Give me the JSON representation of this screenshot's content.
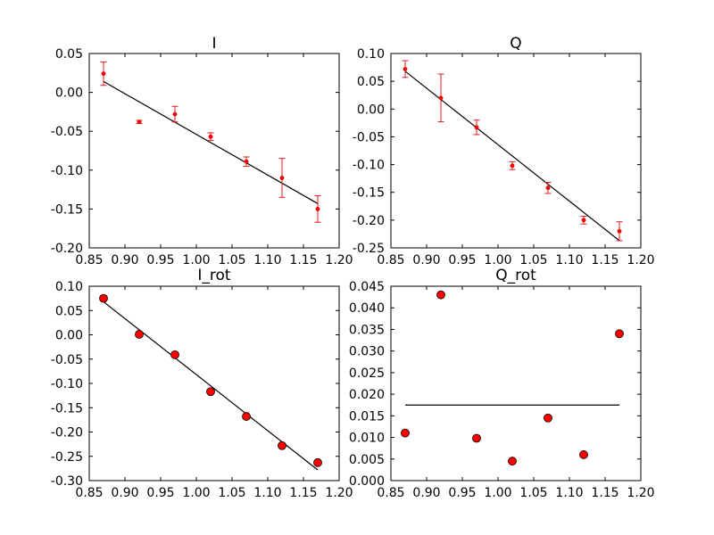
{
  "chart_data": [
    {
      "type": "scatter",
      "title": "I",
      "xlim": [
        0.85,
        1.2
      ],
      "ylim": [
        -0.2,
        0.05
      ],
      "xticks": [
        "0.85",
        "0.90",
        "0.95",
        "1.00",
        "1.05",
        "1.10",
        "1.15",
        "1.20"
      ],
      "yticks": [
        "-0.20",
        "-0.15",
        "-0.10",
        "-0.05",
        "0.00",
        "0.05"
      ],
      "marker": "dot-errorbar",
      "color": "#ff0000",
      "points": [
        {
          "x": 0.87,
          "y": 0.024,
          "err": 0.015
        },
        {
          "x": 0.92,
          "y": -0.038,
          "err": 0.002
        },
        {
          "x": 0.97,
          "y": -0.028,
          "err": 0.01
        },
        {
          "x": 1.02,
          "y": -0.057,
          "err": 0.005
        },
        {
          "x": 1.07,
          "y": -0.089,
          "err": 0.006
        },
        {
          "x": 1.12,
          "y": -0.11,
          "err": 0.025
        },
        {
          "x": 1.17,
          "y": -0.15,
          "err": 0.017
        }
      ],
      "fit": [
        [
          0.87,
          0.014
        ],
        [
          1.17,
          -0.143
        ]
      ]
    },
    {
      "type": "scatter",
      "title": "Q",
      "xlim": [
        0.85,
        1.2
      ],
      "ylim": [
        -0.25,
        0.1
      ],
      "xticks": [
        "0.85",
        "0.90",
        "0.95",
        "1.00",
        "1.05",
        "1.10",
        "1.15",
        "1.20"
      ],
      "yticks": [
        "-0.25",
        "-0.20",
        "-0.15",
        "-0.10",
        "-0.05",
        "0.00",
        "0.05",
        "0.10"
      ],
      "marker": "dot-errorbar",
      "color": "#ff0000",
      "points": [
        {
          "x": 0.87,
          "y": 0.072,
          "err": 0.015
        },
        {
          "x": 0.92,
          "y": 0.02,
          "err": 0.043
        },
        {
          "x": 0.97,
          "y": -0.033,
          "err": 0.013
        },
        {
          "x": 1.02,
          "y": -0.102,
          "err": 0.007
        },
        {
          "x": 1.07,
          "y": -0.142,
          "err": 0.01
        },
        {
          "x": 1.12,
          "y": -0.2,
          "err": 0.007
        },
        {
          "x": 1.17,
          "y": -0.22,
          "err": 0.017
        }
      ],
      "fit": [
        [
          0.87,
          0.068
        ],
        [
          1.17,
          -0.237
        ]
      ]
    },
    {
      "type": "scatter",
      "title": "I_rot",
      "xlim": [
        0.85,
        1.2
      ],
      "ylim": [
        -0.3,
        0.1
      ],
      "xticks": [
        "0.85",
        "0.90",
        "0.95",
        "1.00",
        "1.05",
        "1.10",
        "1.15",
        "1.20"
      ],
      "yticks": [
        "-0.30",
        "-0.25",
        "-0.20",
        "-0.15",
        "-0.10",
        "-0.05",
        "0.00",
        "0.05",
        "0.10"
      ],
      "marker": "circle",
      "color": "#ff0000",
      "points": [
        {
          "x": 0.87,
          "y": 0.075
        },
        {
          "x": 0.92,
          "y": 0.001
        },
        {
          "x": 0.97,
          "y": -0.041
        },
        {
          "x": 1.02,
          "y": -0.117
        },
        {
          "x": 1.07,
          "y": -0.168
        },
        {
          "x": 1.12,
          "y": -0.228
        },
        {
          "x": 1.17,
          "y": -0.263
        }
      ],
      "fit": [
        [
          0.87,
          0.068
        ],
        [
          1.17,
          -0.278
        ]
      ]
    },
    {
      "type": "scatter",
      "title": "Q_rot",
      "xlim": [
        0.85,
        1.2
      ],
      "ylim": [
        0.0,
        0.045
      ],
      "xticks": [
        "0.85",
        "0.90",
        "0.95",
        "1.00",
        "1.05",
        "1.10",
        "1.15",
        "1.20"
      ],
      "yticks": [
        "0.000",
        "0.005",
        "0.010",
        "0.015",
        "0.020",
        "0.025",
        "0.030",
        "0.035",
        "0.040",
        "0.045"
      ],
      "marker": "circle",
      "color": "#ff0000",
      "points": [
        {
          "x": 0.87,
          "y": 0.011
        },
        {
          "x": 0.92,
          "y": 0.043
        },
        {
          "x": 0.97,
          "y": 0.0098
        },
        {
          "x": 1.02,
          "y": 0.0045
        },
        {
          "x": 1.07,
          "y": 0.0145
        },
        {
          "x": 1.12,
          "y": 0.006
        },
        {
          "x": 1.17,
          "y": 0.034
        }
      ],
      "fit": [
        [
          0.87,
          0.0175
        ],
        [
          1.17,
          0.0175
        ]
      ]
    }
  ]
}
